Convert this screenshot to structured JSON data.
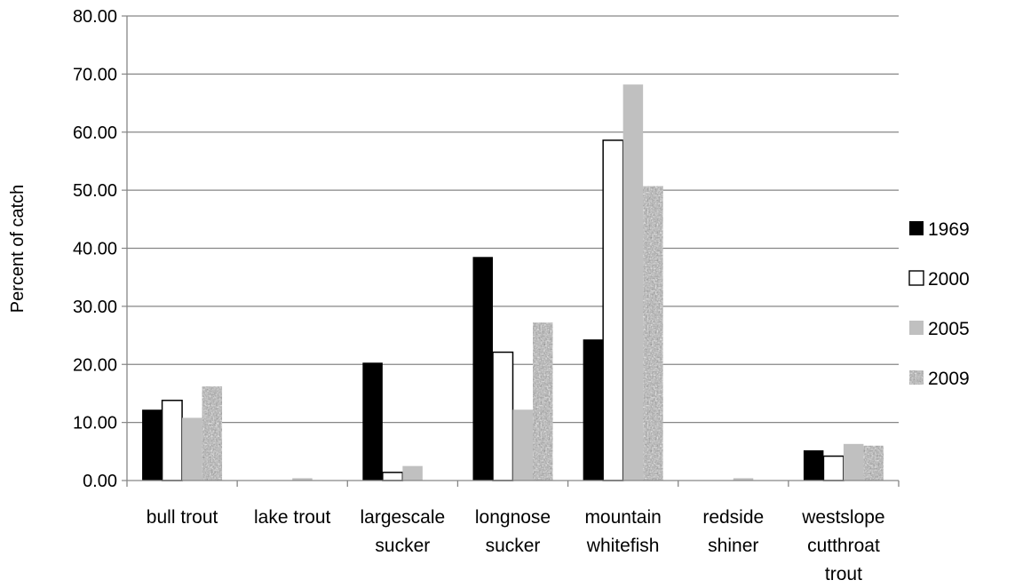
{
  "chart_data": {
    "type": "bar",
    "title": "",
    "xlabel": "",
    "ylabel": "Percent of catch",
    "ylim": [
      0,
      80
    ],
    "ytick_step": 10,
    "ytick_decimals": 2,
    "grid": true,
    "legend_position": "right",
    "categories": [
      [
        "bull trout"
      ],
      [
        "lake trout"
      ],
      [
        "largescale",
        "sucker"
      ],
      [
        "longnose",
        "sucker"
      ],
      [
        "mountain",
        "whitefish"
      ],
      [
        "redside",
        "shiner"
      ],
      [
        "westslope",
        "cutthroat",
        "trout"
      ]
    ],
    "series": [
      {
        "name": "1969",
        "fill": "#000000",
        "pattern": "solid",
        "values": [
          12.2,
          0.0,
          20.3,
          38.5,
          24.3,
          0.0,
          5.2
        ]
      },
      {
        "name": "2000",
        "fill": "#ffffff",
        "pattern": "outline",
        "values": [
          13.8,
          0.0,
          1.4,
          22.1,
          58.6,
          0.0,
          4.2
        ]
      },
      {
        "name": "2005",
        "fill": "#c0c0c0",
        "pattern": "solid",
        "values": [
          10.8,
          0.4,
          2.5,
          12.2,
          68.2,
          0.4,
          6.3
        ]
      },
      {
        "name": "2009",
        "fill": "#a6a6a6",
        "pattern": "noise",
        "values": [
          16.2,
          0.0,
          0.0,
          27.2,
          50.7,
          0.0,
          6.0
        ]
      }
    ]
  }
}
